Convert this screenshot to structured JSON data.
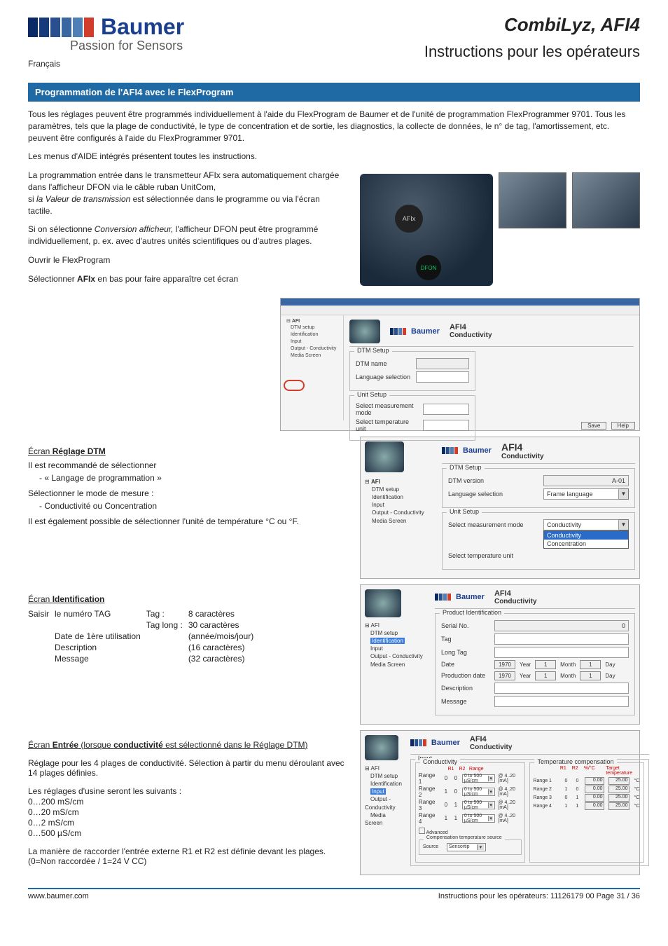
{
  "logo": {
    "brand": "Baumer",
    "tagline": "Passion for Sensors",
    "square_colors": [
      "#0a2a66",
      "#173a7a",
      "#2a4f8f",
      "#3a66a2",
      "#4f7fb7",
      "#d23c2a"
    ]
  },
  "header": {
    "title": "CombiLyz, AFI4",
    "subtitle": "Instructions pour les opérateurs",
    "language": "Français"
  },
  "section_bar": "Programmation de l'AFI4 avec le FlexProgram",
  "intro": {
    "p1": "Tous les réglages peuvent être programmés individuellement à l'aide du FlexProgram de Baumer et de l'unité de programmation FlexProgrammer 9701.  Tous les paramètres, tels que la plage de conductivité, le type de concentration et de sortie, les diagnostics, la collecte de données, le n° de tag, l'amortissement, etc. peuvent être configurés à l'aide du FlexProgrammer 9701.",
    "p2": "Les menus d'AIDE intégrés présentent toutes les instructions.",
    "p3a": "La programmation entrée dans le transmetteur AFIx sera automatiquement chargée dans l'afficheur DFON via le câble ruban UnitCom,",
    "p3b_prefix": "si ",
    "p3b_italic": "la Valeur de transmission",
    "p3b_suffix": " est sélectionnée dans le programme ou via l'écran tactile.",
    "p4_prefix": "Si on sélectionne ",
    "p4_italic": "Conversion afficheur,",
    "p4_suffix": " l'afficheur DFON peut être programmé individuellement, p. ex. avec d'autres unités scientifiques ou d'autres plages.",
    "p5": "Ouvrir le FlexProgram",
    "p6_prefix": "Sélectionner ",
    "p6_bold": "AFIx",
    "p6_suffix": " en bas pour faire apparaître cet écran"
  },
  "device_labels": {
    "afi": "AFIx",
    "dfon": "DFON"
  },
  "ss_common": {
    "logo_brand": "Baumer",
    "title": "AFI4",
    "subtitle": "Conductivity"
  },
  "ss_top": {
    "tree_parent": "AFI",
    "tree_items": [
      "DTM setup",
      "Identification",
      "Input",
      "Output - Conductivity",
      "Media Screen"
    ],
    "dtm_group": "DTM Setup",
    "dtm_name_label": "DTM name",
    "dtm_lang_label": "Language selection",
    "unit_group": "Unit Setup",
    "unit_mode_label": "Select measurement mode",
    "unit_temp_label": "Select temperature unit",
    "btn_save": "Save",
    "btn_help": "Help"
  },
  "dtm_section": {
    "heading_pre": "Écran ",
    "heading_bold": "Réglage DTM",
    "l1": "Il est recommandé de sélectionner",
    "bullet1": "-        « Langage de programmation »",
    "l2": "Sélectionner le mode de mesure :",
    "bullet2": "-        Conductivité ou Concentration",
    "l3": "Il est également possible de sélectionner l'unité de température °C ou °F."
  },
  "ss_dtm": {
    "tree_items": [
      "DTM setup",
      "Identification",
      "Input",
      "Output - Conductivity",
      "Media Screen"
    ],
    "dtm_group": "DTM Setup",
    "dtm_version_label": "DTM version",
    "dtm_version_value": "A-01",
    "lang_label": "Language selection",
    "lang_value": "Frame language",
    "unit_group": "Unit Setup",
    "mode_label": "Select measurement mode",
    "mode_value": "Conductivity",
    "mode_opt2": "Concentration",
    "temp_label": "Select temperature unit"
  },
  "id_section": {
    "heading_pre": "Écran ",
    "heading_bold": "Identification",
    "enter": "Saisir",
    "r1a": "le numéro TAG",
    "r1b": "Tag :",
    "r1c": "8 caractères",
    "r2b": "Tag long :",
    "r2c": "30 caractères",
    "r3a": "Date de 1ère utilisation",
    "r3c": "(année/mois/jour)",
    "r4a": "Description",
    "r4c": "(16 caractères)",
    "r5a": "Message",
    "r5c": "(32 caractères)"
  },
  "ss_id": {
    "group": "Product Identification",
    "serial": "Serial No.",
    "serial_val": "0",
    "tag": "Tag",
    "longtag": "Long Tag",
    "date": "Date",
    "prod_date": "Production date",
    "desc": "Description",
    "msg": "Message",
    "year": "Year",
    "month": "Month",
    "day": "Day",
    "y_val": "1970",
    "m_val": "1",
    "d_val": "1",
    "tree_hl": "Identification"
  },
  "input_section": {
    "heading_pre": "Écran ",
    "heading_bold": "Entrée",
    "heading_mid": " (lorsque ",
    "heading_bold2": "conductivité",
    "heading_suf": " est sélectionné dans le Réglage DTM)",
    "p1": "Réglage pour les 4 plages de conductivité. Sélection à partir du menu déroulant avec 14 plages définies.",
    "p2": "Les réglages d'usine seront les suivants :",
    "ranges": [
      "0…200 mS/cm",
      "0…20 mS/cm",
      "0…2 mS/cm",
      "0…500 µS/cm"
    ],
    "p3": "La manière de raccorder l'entrée externe R1 et R2 est définie devant les plages. (0=Non raccordée / 1=24 V CC)"
  },
  "ss_input": {
    "group": "Input",
    "cond_group": "Conductivity",
    "hdr_r1": "R1",
    "hdr_r2": "R2",
    "hdr_range": "Range",
    "rows": [
      {
        "label": "Range 1",
        "r1": "0",
        "r2": "0",
        "sel": "0 to 500 µS/cm",
        "ma": "@ 4..20 [mA]"
      },
      {
        "label": "Range 2",
        "r1": "1",
        "r2": "0",
        "sel": "0 to 500 µS/cm",
        "ma": "@ 4..20 [mA]"
      },
      {
        "label": "Range 3",
        "r1": "0",
        "r2": "1",
        "sel": "0 to 500 µS/cm",
        "ma": "@ 4..20 [mA]"
      },
      {
        "label": "Range 4",
        "r1": "1",
        "r2": "1",
        "sel": "0 to 500 µS/cm",
        "ma": "@ 4..20 [mA]"
      }
    ],
    "adv": "Advanced",
    "comp_group": "Compensation temperature source",
    "comp_src_label": "Source",
    "comp_src_val": "Sensortip",
    "tc_group": "Temperature compensation",
    "tc_hdr_r1": "R1",
    "tc_hdr_r2": "R2",
    "tc_hdr_pct": "%/°C",
    "tc_hdr_target": "Target temperature",
    "tc_rows": [
      {
        "label": "Range 1",
        "r1": "0",
        "r2": "0",
        "pct": "0.00",
        "t": "25.00"
      },
      {
        "label": "Range 2",
        "r1": "1",
        "r2": "0",
        "pct": "0.00",
        "t": "25.00"
      },
      {
        "label": "Range 3",
        "r1": "0",
        "r2": "1",
        "pct": "0.00",
        "t": "25.00"
      },
      {
        "label": "Range 4",
        "r1": "1",
        "r2": "1",
        "pct": "0.00",
        "t": "25.00"
      }
    ],
    "tc_unit": "°C",
    "tree_hl": "Input"
  },
  "footer": {
    "url": "www.baumer.com",
    "right": "Instructions pour les opérateurs: 11126179 00     Page 31 / 36"
  },
  "colors": {
    "brand_blue": "#1b3f8f",
    "bar_blue": "#1f6aa5",
    "hl_blue": "#3a7de0",
    "hdr_red": "#c00"
  }
}
